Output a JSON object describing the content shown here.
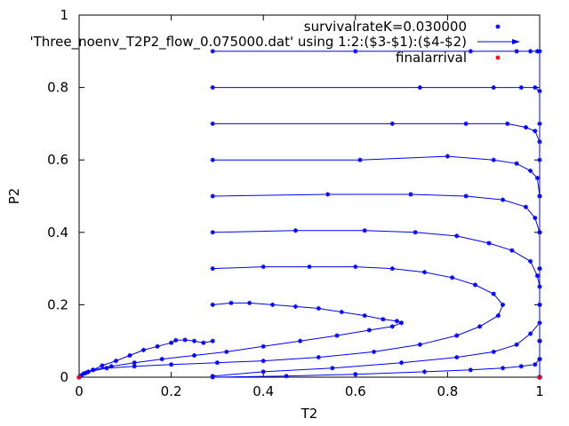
{
  "chart_data": {
    "type": "scatter",
    "title": "",
    "xlabel": "T2",
    "ylabel": "P2",
    "xlim": [
      0,
      1
    ],
    "ylim": [
      0,
      1
    ],
    "xticks": [
      "0",
      "0.2",
      "0.4",
      "0.6",
      "0.8",
      "1"
    ],
    "yticks": [
      "0",
      "0.2",
      "0.4",
      "0.6",
      "0.8",
      "1"
    ],
    "grid": false,
    "legend_position": "top-right",
    "legend": [
      {
        "label": "survivalrateK=0.030000",
        "style": "points",
        "color": "#0000ff"
      },
      {
        "label": "'Three_noenv_T2P2_flow_0.075000.dat' using 1:2:($3-$1):($4-$2)",
        "style": "vectors",
        "color": "#0000ff"
      },
      {
        "label": "finalarrival",
        "style": "points",
        "color": "#ff0000"
      }
    ],
    "series": [
      {
        "name": "survivalrateK=0.030000",
        "color": "#0000ff",
        "trajectories": [
          [
            [
              0.29,
              0.9
            ],
            [
              0.6,
              0.9
            ],
            [
              0.85,
              0.9
            ],
            [
              0.95,
              0.9
            ],
            [
              0.98,
              0.9
            ],
            [
              0.995,
              0.9
            ],
            [
              1,
              0.9
            ],
            [
              1,
              0.7
            ],
            [
              1,
              0.5
            ],
            [
              1,
              0.3
            ],
            [
              1,
              0.1
            ],
            [
              1,
              0
            ]
          ],
          [
            [
              0.29,
              0.8
            ],
            [
              0.74,
              0.8
            ],
            [
              0.9,
              0.8
            ],
            [
              0.96,
              0.8
            ],
            [
              0.99,
              0.8
            ],
            [
              1,
              0.79
            ],
            [
              1,
              0.6
            ],
            [
              1,
              0.3
            ],
            [
              1,
              0
            ]
          ],
          [
            [
              0.29,
              0.7
            ],
            [
              0.68,
              0.7
            ],
            [
              0.84,
              0.7
            ],
            [
              0.93,
              0.7
            ],
            [
              0.97,
              0.69
            ],
            [
              0.99,
              0.68
            ],
            [
              1,
              0.65
            ],
            [
              1,
              0.4
            ],
            [
              1,
              0
            ]
          ],
          [
            [
              0.29,
              0.6
            ],
            [
              0.61,
              0.6
            ],
            [
              0.8,
              0.61
            ],
            [
              0.9,
              0.6
            ],
            [
              0.95,
              0.59
            ],
            [
              0.98,
              0.57
            ],
            [
              0.995,
              0.55
            ],
            [
              1,
              0.5
            ],
            [
              1,
              0.2
            ],
            [
              1,
              0
            ]
          ],
          [
            [
              0.29,
              0.5
            ],
            [
              0.54,
              0.505
            ],
            [
              0.72,
              0.505
            ],
            [
              0.84,
              0.5
            ],
            [
              0.92,
              0.49
            ],
            [
              0.97,
              0.47
            ],
            [
              0.99,
              0.44
            ],
            [
              1,
              0.4
            ],
            [
              1,
              0.2
            ],
            [
              1,
              0
            ]
          ],
          [
            [
              0.29,
              0.4
            ],
            [
              0.47,
              0.405
            ],
            [
              0.62,
              0.405
            ],
            [
              0.73,
              0.4
            ],
            [
              0.82,
              0.39
            ],
            [
              0.89,
              0.37
            ],
            [
              0.94,
              0.35
            ],
            [
              0.98,
              0.32
            ],
            [
              0.995,
              0.28
            ],
            [
              1,
              0.25
            ],
            [
              1,
              0.1
            ],
            [
              1,
              0
            ]
          ],
          [
            [
              0.29,
              0.3
            ],
            [
              0.4,
              0.305
            ],
            [
              0.5,
              0.305
            ],
            [
              0.6,
              0.305
            ],
            [
              0.68,
              0.3
            ],
            [
              0.75,
              0.29
            ],
            [
              0.81,
              0.275
            ],
            [
              0.86,
              0.255
            ],
            [
              0.9,
              0.23
            ],
            [
              0.92,
              0.2
            ],
            [
              0.91,
              0.17
            ],
            [
              0.87,
              0.14
            ],
            [
              0.82,
              0.115
            ],
            [
              0.74,
              0.09
            ],
            [
              0.64,
              0.07
            ],
            [
              0.52,
              0.055
            ],
            [
              0.4,
              0.045
            ],
            [
              0.3,
              0.04
            ],
            [
              0.2,
              0.035
            ],
            [
              0.12,
              0.03
            ],
            [
              0.06,
              0.025
            ],
            [
              0.02,
              0.015
            ],
            [
              0.005,
              0.005
            ],
            [
              0,
              0
            ]
          ],
          [
            [
              0.29,
              0.2
            ],
            [
              0.33,
              0.205
            ],
            [
              0.37,
              0.205
            ],
            [
              0.42,
              0.2
            ],
            [
              0.47,
              0.195
            ],
            [
              0.52,
              0.19
            ],
            [
              0.57,
              0.18
            ],
            [
              0.62,
              0.17
            ],
            [
              0.66,
              0.16
            ],
            [
              0.69,
              0.155
            ],
            [
              0.7,
              0.15
            ],
            [
              0.68,
              0.14
            ],
            [
              0.63,
              0.13
            ],
            [
              0.56,
              0.115
            ],
            [
              0.48,
              0.1
            ],
            [
              0.4,
              0.085
            ],
            [
              0.32,
              0.07
            ],
            [
              0.25,
              0.06
            ],
            [
              0.18,
              0.05
            ],
            [
              0.12,
              0.04
            ],
            [
              0.07,
              0.03
            ],
            [
              0.03,
              0.02
            ],
            [
              0.01,
              0.01
            ],
            [
              0,
              0
            ]
          ],
          [
            [
              0.29,
              0.1
            ],
            [
              0.27,
              0.095
            ],
            [
              0.25,
              0.1
            ],
            [
              0.23,
              0.103
            ],
            [
              0.21,
              0.102
            ],
            [
              0.2,
              0.095
            ],
            [
              0.17,
              0.085
            ],
            [
              0.14,
              0.075
            ],
            [
              0.11,
              0.06
            ],
            [
              0.08,
              0.045
            ],
            [
              0.05,
              0.032
            ],
            [
              0.03,
              0.02
            ],
            [
              0.015,
              0.012
            ],
            [
              0.005,
              0.005
            ],
            [
              0,
              0
            ]
          ],
          [
            [
              0.29,
              0
            ],
            [
              0.45,
              0.003
            ],
            [
              0.6,
              0.008
            ],
            [
              0.75,
              0.015
            ],
            [
              0.85,
              0.02
            ],
            [
              0.92,
              0.025
            ],
            [
              0.96,
              0.03
            ],
            [
              0.99,
              0.035
            ],
            [
              1,
              0.05
            ],
            [
              1,
              0
            ]
          ],
          [
            [
              0.29,
              0.003
            ],
            [
              0.4,
              0.015
            ],
            [
              0.55,
              0.025
            ],
            [
              0.7,
              0.04
            ],
            [
              0.82,
              0.055
            ],
            [
              0.9,
              0.07
            ],
            [
              0.95,
              0.09
            ],
            [
              0.98,
              0.12
            ],
            [
              1,
              0.15
            ],
            [
              1,
              0.05
            ],
            [
              1,
              0
            ]
          ]
        ]
      },
      {
        "name": "finalarrival",
        "color": "#ff0000",
        "points": [
          [
            0,
            0
          ],
          [
            1,
            0
          ]
        ]
      }
    ]
  }
}
